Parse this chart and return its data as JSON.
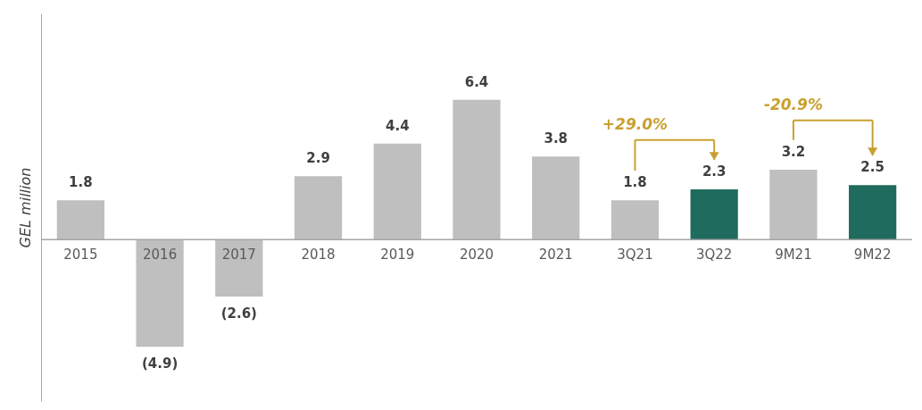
{
  "chart_data": {
    "type": "bar",
    "ylabel": "GEL million",
    "categories": [
      "2015",
      "2016",
      "2017",
      "2018",
      "2019",
      "2020",
      "2021",
      "3Q21",
      "3Q22",
      "9M21",
      "9M22"
    ],
    "values": [
      1.8,
      -4.9,
      -2.6,
      2.9,
      4.4,
      6.4,
      3.8,
      1.8,
      2.3,
      3.2,
      2.5
    ],
    "colors": [
      "#bfbfbf",
      "#bfbfbf",
      "#bfbfbf",
      "#bfbfbf",
      "#bfbfbf",
      "#bfbfbf",
      "#bfbfbf",
      "#bfbfbf",
      "#1f6b5e",
      "#bfbfbf",
      "#1f6b5e"
    ],
    "value_labels": [
      "1.8",
      "(4.9)",
      "(2.6)",
      "2.9",
      "4.4",
      "6.4",
      "3.8",
      "1.8",
      "2.3",
      "3.2",
      "2.5"
    ],
    "annotations": [
      "+29.0%",
      "-20.9%"
    ],
    "grid": false
  }
}
